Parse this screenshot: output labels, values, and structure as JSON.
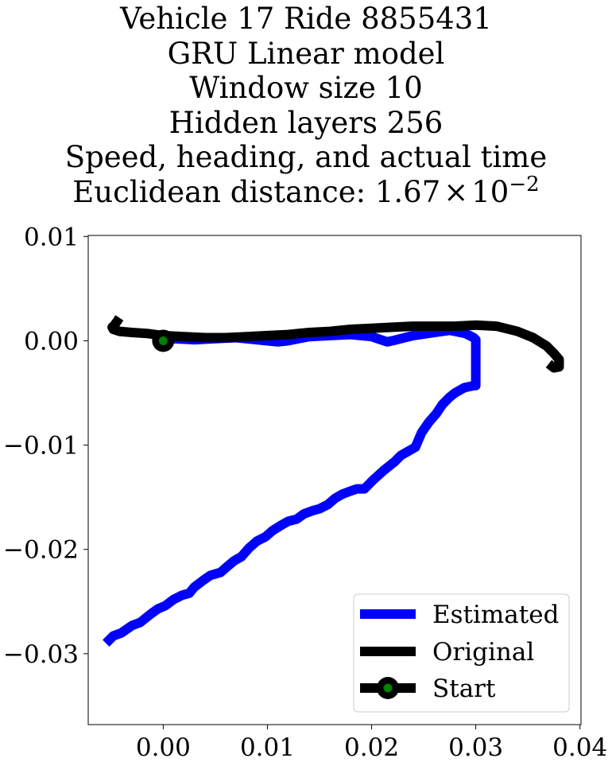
{
  "chart_data": {
    "type": "line",
    "title_lines": [
      "Vehicle 17 Ride 8855431",
      "GRU Linear model",
      "Window size 10",
      "Hidden layers 256",
      "Speed, heading, and actual time"
    ],
    "title_distance_prefix": "Euclidean distance: 1.67",
    "title_distance_times": "×",
    "title_distance_base": "10",
    "title_distance_exp": "−2",
    "xlim": [
      -0.0072,
      0.0401
    ],
    "ylim": [
      -0.0368,
      0.0101
    ],
    "xticks": [
      0.0,
      0.01,
      0.02,
      0.03,
      0.04
    ],
    "xtick_labels": [
      "0.00",
      "0.01",
      "0.02",
      "0.03",
      "0.04"
    ],
    "yticks": [
      0.01,
      0.0,
      -0.01,
      -0.02,
      -0.03
    ],
    "ytick_labels": [
      "0.01",
      "0.00",
      "−0.01",
      "−0.02",
      "−0.03"
    ],
    "grid": false,
    "legend_position": "lower-right",
    "series": [
      {
        "name": "Estimated",
        "color": "#0000ff",
        "x": [
          -0.0055,
          -0.0048,
          -0.004,
          -0.003,
          -0.0022,
          -0.0012,
          -0.0005,
          0.0002,
          0.001,
          0.0018,
          0.0025,
          0.003,
          0.0038,
          0.0045,
          0.0055,
          0.0062,
          0.0068,
          0.0075,
          0.0082,
          0.009,
          0.0098,
          0.0105,
          0.0113,
          0.012,
          0.0128,
          0.0135,
          0.0143,
          0.015,
          0.0158,
          0.0165,
          0.0172,
          0.018,
          0.0186,
          0.0193,
          0.0202,
          0.0212,
          0.0222,
          0.0228,
          0.0235,
          0.0242,
          0.0248,
          0.0255,
          0.0262,
          0.0268,
          0.0275,
          0.028,
          0.0289,
          0.0298,
          0.03,
          0.03,
          0.0298,
          0.029,
          0.0275,
          0.026,
          0.024,
          0.022,
          0.0215,
          0.02,
          0.018,
          0.016,
          0.014,
          0.013,
          0.012,
          0.011,
          0.009,
          0.007,
          0.005,
          0.003,
          0.001,
          0.0
        ],
        "y": [
          -0.029,
          -0.0283,
          -0.028,
          -0.0273,
          -0.027,
          -0.0262,
          -0.0257,
          -0.0254,
          -0.0248,
          -0.0244,
          -0.0242,
          -0.0236,
          -0.023,
          -0.0225,
          -0.0222,
          -0.0216,
          -0.0211,
          -0.0207,
          -0.0199,
          -0.0192,
          -0.0188,
          -0.0182,
          -0.0177,
          -0.0173,
          -0.0171,
          -0.0166,
          -0.0163,
          -0.0161,
          -0.0157,
          -0.0151,
          -0.0147,
          -0.0144,
          -0.0142,
          -0.0142,
          -0.0133,
          -0.0124,
          -0.0116,
          -0.011,
          -0.0106,
          -0.0102,
          -0.0088,
          -0.0078,
          -0.007,
          -0.0061,
          -0.0054,
          -0.005,
          -0.0045,
          -0.0043,
          -0.0043,
          0.0001,
          0.0003,
          0.0007,
          0.001,
          0.0008,
          0.0005,
          0.0,
          -0.0001,
          0.0004,
          0.0006,
          0.0005,
          0.0004,
          0.0002,
          0.0,
          -0.0001,
          0.0001,
          0.0003,
          0.0002,
          0.0001,
          0.0002,
          0.0
        ]
      },
      {
        "name": "Original",
        "color": "#000000",
        "x": [
          -0.0042,
          -0.0044,
          -0.0047,
          -0.0049,
          -0.0048,
          -0.0042,
          -0.003,
          -0.0015,
          0.0,
          0.002,
          0.004,
          0.006,
          0.008,
          0.01,
          0.012,
          0.014,
          0.016,
          0.018,
          0.02,
          0.022,
          0.024,
          0.026,
          0.028,
          0.03,
          0.032,
          0.034,
          0.0355,
          0.0368,
          0.0375,
          0.038,
          0.038,
          0.0375,
          0.037
        ],
        "y": [
          0.0022,
          0.0019,
          0.0015,
          0.0013,
          0.0011,
          0.0009,
          0.0008,
          0.0007,
          0.0005,
          0.0004,
          0.0003,
          0.0003,
          0.0004,
          0.0005,
          0.0006,
          0.0008,
          0.0009,
          0.0011,
          0.0012,
          0.0013,
          0.0014,
          0.0014,
          0.0014,
          0.0015,
          0.0014,
          0.0009,
          0.0003,
          -0.0005,
          -0.0012,
          -0.0018,
          -0.0025,
          -0.0026,
          -0.0022
        ]
      }
    ],
    "start_point": {
      "name": "Start",
      "x": 0.0,
      "y": 0.0,
      "line_color": "#000000",
      "fill_color": "#008000"
    }
  }
}
